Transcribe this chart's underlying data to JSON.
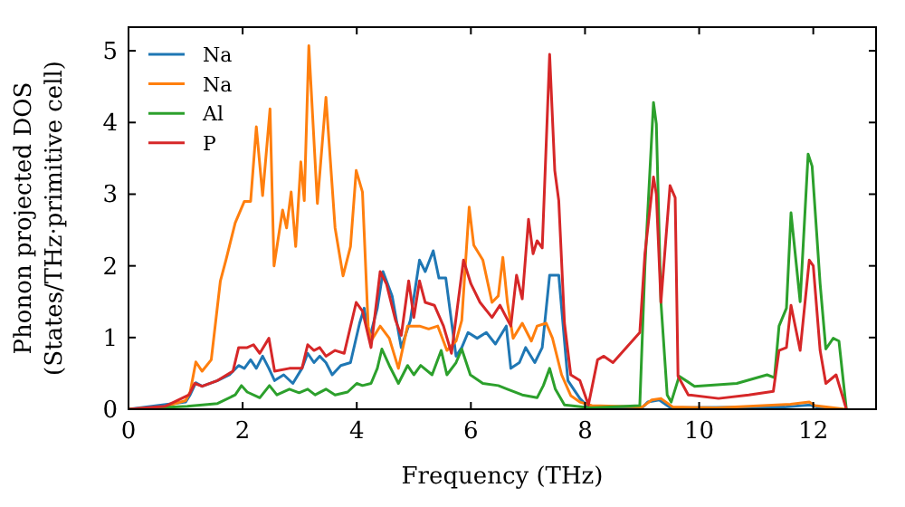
{
  "chart_data": {
    "type": "line",
    "xlabel": "Frequency (THz)",
    "ylabel": "Phonon projected DOS\n(States/THz·primitive cell)",
    "xlim": [
      0,
      13.1
    ],
    "ylim": [
      0,
      5.33
    ],
    "xticks": [
      0,
      2,
      4,
      6,
      8,
      10,
      12
    ],
    "yticks": [
      0,
      1,
      2,
      3,
      4,
      5
    ],
    "grid": false,
    "legend": "top left",
    "marker": "none",
    "line_style": "solid",
    "series": [
      {
        "name": "Na",
        "color": "#1f77b4",
        "x": [
          0,
          1.0,
          1.08,
          1.18,
          1.29,
          1.56,
          1.77,
          1.93,
          2.03,
          2.14,
          2.24,
          2.35,
          2.46,
          2.56,
          2.72,
          2.88,
          3.04,
          3.14,
          3.25,
          3.35,
          3.46,
          3.57,
          3.72,
          3.89,
          4.05,
          4.13,
          4.2,
          4.25,
          4.36,
          4.46,
          4.62,
          4.78,
          4.94,
          5.1,
          5.2,
          5.34,
          5.44,
          5.56,
          5.74,
          5.84,
          5.95,
          6.11,
          6.27,
          6.43,
          6.62,
          6.7,
          6.85,
          6.96,
          7.12,
          7.25,
          7.38,
          7.54,
          7.7,
          7.91,
          8.06,
          9.0,
          9.1,
          9.3,
          9.5,
          11.5,
          11.95,
          12.1,
          12.5
        ],
        "values": [
          0,
          0.1,
          0.2,
          0.37,
          0.32,
          0.4,
          0.48,
          0.61,
          0.57,
          0.69,
          0.57,
          0.74,
          0.57,
          0.4,
          0.48,
          0.36,
          0.57,
          0.78,
          0.65,
          0.74,
          0.65,
          0.48,
          0.61,
          0.65,
          1.2,
          1.41,
          1.07,
          1.07,
          1.41,
          1.92,
          1.58,
          0.86,
          1.24,
          2.08,
          1.92,
          2.21,
          1.83,
          1.83,
          0.74,
          0.86,
          1.07,
          0.99,
          1.07,
          0.91,
          1.16,
          0.57,
          0.65,
          0.86,
          0.65,
          0.86,
          1.87,
          1.87,
          0.4,
          0.15,
          0.03,
          0.02,
          0.1,
          0.13,
          0.02,
          0.03,
          0.06,
          0.02,
          0
        ]
      },
      {
        "name": "Na",
        "color": "#ff7f0e",
        "x": [
          0,
          0.6,
          1.0,
          1.08,
          1.18,
          1.29,
          1.45,
          1.61,
          1.71,
          1.87,
          2.03,
          2.14,
          2.24,
          2.35,
          2.48,
          2.55,
          2.7,
          2.77,
          2.85,
          2.93,
          3.02,
          3.08,
          3.16,
          3.31,
          3.46,
          3.62,
          3.76,
          3.89,
          3.99,
          4.1,
          4.2,
          4.25,
          4.41,
          4.57,
          4.73,
          4.89,
          5.1,
          5.26,
          5.42,
          5.58,
          5.74,
          5.84,
          5.97,
          6.05,
          6.21,
          6.37,
          6.48,
          6.56,
          6.64,
          6.74,
          6.9,
          7.06,
          7.16,
          7.32,
          7.43,
          7.59,
          7.75,
          7.91,
          8.12,
          9.0,
          9.17,
          9.33,
          9.54,
          10.3,
          11.6,
          11.93,
          12.03,
          12.56
        ],
        "values": [
          0,
          0.03,
          0.12,
          0.24,
          0.66,
          0.53,
          0.69,
          1.79,
          2.09,
          2.6,
          2.9,
          2.9,
          3.94,
          2.98,
          4.19,
          2.0,
          2.78,
          2.53,
          3.03,
          2.27,
          3.45,
          2.91,
          5.07,
          2.87,
          4.35,
          2.53,
          1.86,
          2.27,
          3.33,
          3.03,
          1.16,
          0.95,
          1.16,
          0.99,
          0.57,
          1.16,
          1.16,
          1.12,
          1.16,
          0.82,
          0.95,
          1.24,
          2.82,
          2.29,
          2.08,
          1.49,
          1.58,
          2.12,
          1.49,
          0.99,
          1.2,
          0.95,
          1.16,
          1.2,
          0.99,
          0.48,
          0.19,
          0.1,
          0.05,
          0.03,
          0.13,
          0.15,
          0.03,
          0.02,
          0.07,
          0.1,
          0.05,
          0
        ]
      },
      {
        "name": "Al",
        "color": "#2ca02c",
        "x": [
          0,
          1.03,
          1.56,
          1.87,
          1.98,
          2.08,
          2.3,
          2.47,
          2.6,
          2.82,
          2.99,
          3.14,
          3.27,
          3.46,
          3.62,
          3.84,
          4.0,
          4.1,
          4.25,
          4.36,
          4.44,
          4.57,
          4.73,
          4.89,
          5.0,
          5.12,
          5.32,
          5.48,
          5.58,
          5.74,
          5.84,
          5.99,
          6.21,
          6.48,
          6.64,
          6.9,
          7.16,
          7.27,
          7.38,
          7.48,
          7.64,
          8.1,
          8.96,
          9.05,
          9.2,
          9.25,
          9.33,
          9.44,
          9.51,
          9.65,
          9.92,
          10.66,
          11.19,
          11.32,
          11.4,
          11.53,
          11.61,
          11.77,
          11.91,
          11.98,
          12.12,
          12.22,
          12.35,
          12.45,
          12.58
        ],
        "values": [
          0,
          0.04,
          0.08,
          0.2,
          0.33,
          0.24,
          0.16,
          0.33,
          0.2,
          0.28,
          0.23,
          0.28,
          0.2,
          0.28,
          0.2,
          0.24,
          0.36,
          0.33,
          0.36,
          0.57,
          0.84,
          0.61,
          0.36,
          0.61,
          0.48,
          0.61,
          0.48,
          0.82,
          0.48,
          0.65,
          0.84,
          0.48,
          0.36,
          0.33,
          0.28,
          0.2,
          0.16,
          0.33,
          0.57,
          0.28,
          0.06,
          0.02,
          0.05,
          2.0,
          4.28,
          3.98,
          1.5,
          0.2,
          0.1,
          0.46,
          0.32,
          0.36,
          0.48,
          0.44,
          1.16,
          1.41,
          2.74,
          1.5,
          3.56,
          3.39,
          1.75,
          0.84,
          0.99,
          0.95,
          0
        ]
      },
      {
        "name": "P",
        "color": "#d62728",
        "x": [
          0,
          0.64,
          1.06,
          1.16,
          1.29,
          1.56,
          1.83,
          1.93,
          2.08,
          2.19,
          2.3,
          2.46,
          2.56,
          2.82,
          3.04,
          3.14,
          3.25,
          3.35,
          3.46,
          3.62,
          3.78,
          3.99,
          4.1,
          4.25,
          4.41,
          4.52,
          4.68,
          4.78,
          4.91,
          5.0,
          5.1,
          5.2,
          5.36,
          5.52,
          5.66,
          5.87,
          6.0,
          6.16,
          6.37,
          6.51,
          6.7,
          6.8,
          6.9,
          7.01,
          7.09,
          7.16,
          7.25,
          7.38,
          7.47,
          7.54,
          7.64,
          7.75,
          7.91,
          8.06,
          8.22,
          8.33,
          8.49,
          8.96,
          9.05,
          9.2,
          9.25,
          9.33,
          9.49,
          9.58,
          9.63,
          9.81,
          10.34,
          10.87,
          11.3,
          11.4,
          11.53,
          11.61,
          11.77,
          11.93,
          12.0,
          12.12,
          12.22,
          12.4,
          12.58
        ],
        "values": [
          0,
          0.04,
          0.2,
          0.36,
          0.32,
          0.4,
          0.53,
          0.86,
          0.86,
          0.9,
          0.78,
          0.99,
          0.53,
          0.57,
          0.57,
          0.9,
          0.82,
          0.86,
          0.74,
          0.82,
          0.78,
          1.49,
          1.37,
          0.86,
          1.92,
          1.75,
          1.24,
          1.03,
          1.79,
          1.28,
          1.79,
          1.49,
          1.45,
          1.16,
          0.78,
          2.08,
          1.75,
          1.49,
          1.28,
          1.45,
          1.16,
          1.87,
          1.54,
          2.65,
          2.17,
          2.35,
          2.25,
          4.95,
          3.33,
          2.91,
          1.2,
          0.48,
          0.4,
          0.06,
          0.69,
          0.74,
          0.65,
          1.07,
          2.17,
          3.24,
          3.0,
          1.49,
          3.12,
          2.95,
          0.46,
          0.2,
          0.15,
          0.2,
          0.25,
          0.82,
          0.86,
          1.45,
          0.82,
          2.08,
          2.0,
          0.82,
          0.36,
          0.48,
          0
        ]
      }
    ]
  }
}
